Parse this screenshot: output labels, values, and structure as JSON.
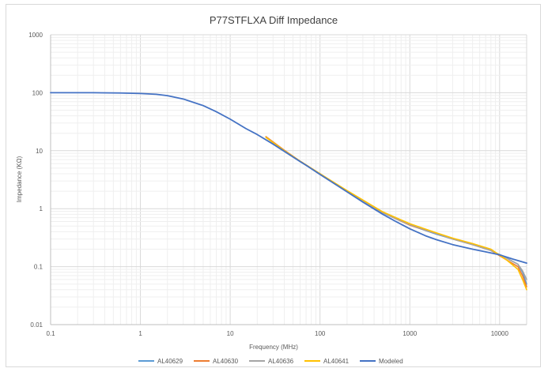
{
  "chart_data": {
    "type": "line",
    "title": "P77STFLXA Diff Impedance",
    "xlabel": "Frequency (MHz)",
    "ylabel": "Impedance (KΩ)",
    "x_scale": "log",
    "y_scale": "log",
    "xlim": [
      0.1,
      20000
    ],
    "ylim": [
      0.01,
      1000
    ],
    "x_ticks": [
      {
        "value": 0.1,
        "label": "0.1"
      },
      {
        "value": 1,
        "label": "1"
      },
      {
        "value": 10,
        "label": "10"
      },
      {
        "value": 100,
        "label": "100"
      },
      {
        "value": 1000,
        "label": "1000"
      },
      {
        "value": 10000,
        "label": "10000"
      }
    ],
    "y_ticks": [
      {
        "value": 0.01,
        "label": "0.01"
      },
      {
        "value": 0.1,
        "label": "0.1"
      },
      {
        "value": 1,
        "label": "1"
      },
      {
        "value": 10,
        "label": "10"
      },
      {
        "value": 100,
        "label": "100"
      },
      {
        "value": 1000,
        "label": "1000"
      }
    ],
    "grid": true,
    "legend_position": "bottom",
    "series": [
      {
        "name": "AL40629",
        "color": "#5b9bd5",
        "points": [
          [
            25,
            17
          ],
          [
            40,
            10
          ],
          [
            60,
            6.5
          ],
          [
            100,
            4
          ],
          [
            200,
            2
          ],
          [
            500,
            0.85
          ],
          [
            1000,
            0.52
          ],
          [
            2000,
            0.36
          ],
          [
            3000,
            0.3
          ],
          [
            5000,
            0.24
          ],
          [
            8000,
            0.19
          ],
          [
            12000,
            0.14
          ],
          [
            16000,
            0.11
          ],
          [
            18000,
            0.08
          ],
          [
            20000,
            0.05
          ]
        ]
      },
      {
        "name": "AL40630",
        "color": "#ed7d31",
        "points": [
          [
            25,
            17.5
          ],
          [
            40,
            10.2
          ],
          [
            60,
            6.6
          ],
          [
            100,
            4
          ],
          [
            200,
            2
          ],
          [
            500,
            0.86
          ],
          [
            1000,
            0.52
          ],
          [
            2000,
            0.37
          ],
          [
            3000,
            0.3
          ],
          [
            5000,
            0.24
          ],
          [
            8000,
            0.19
          ],
          [
            12000,
            0.13
          ],
          [
            16000,
            0.1
          ],
          [
            18000,
            0.07
          ],
          [
            20000,
            0.045
          ]
        ]
      },
      {
        "name": "AL40636",
        "color": "#a5a5a5",
        "points": [
          [
            25,
            17
          ],
          [
            40,
            10
          ],
          [
            60,
            6.5
          ],
          [
            100,
            4
          ],
          [
            200,
            2
          ],
          [
            500,
            0.86
          ],
          [
            1000,
            0.53
          ],
          [
            2000,
            0.37
          ],
          [
            3000,
            0.3
          ],
          [
            5000,
            0.24
          ],
          [
            8000,
            0.19
          ],
          [
            12000,
            0.14
          ],
          [
            16000,
            0.11
          ],
          [
            18000,
            0.085
          ],
          [
            20000,
            0.06
          ]
        ]
      },
      {
        "name": "AL40641",
        "color": "#ffc000",
        "points": [
          [
            25,
            17
          ],
          [
            40,
            10
          ],
          [
            60,
            6.6
          ],
          [
            100,
            4
          ],
          [
            200,
            2.05
          ],
          [
            500,
            0.88
          ],
          [
            1000,
            0.55
          ],
          [
            2000,
            0.38
          ],
          [
            3000,
            0.31
          ],
          [
            5000,
            0.25
          ],
          [
            8000,
            0.2
          ],
          [
            12000,
            0.13
          ],
          [
            16000,
            0.09
          ],
          [
            18000,
            0.06
          ],
          [
            20000,
            0.04
          ]
        ]
      },
      {
        "name": "Modeled",
        "color": "#4472c4",
        "points": [
          [
            0.1,
            100
          ],
          [
            0.3,
            100
          ],
          [
            0.6,
            99
          ],
          [
            1,
            97
          ],
          [
            1.5,
            94
          ],
          [
            2,
            89
          ],
          [
            3,
            78
          ],
          [
            5,
            60
          ],
          [
            7,
            47
          ],
          [
            10,
            35
          ],
          [
            15,
            24
          ],
          [
            20,
            19
          ],
          [
            30,
            13
          ],
          [
            50,
            7.8
          ],
          [
            70,
            5.6
          ],
          [
            100,
            3.9
          ],
          [
            150,
            2.6
          ],
          [
            200,
            1.95
          ],
          [
            300,
            1.3
          ],
          [
            500,
            0.8
          ],
          [
            700,
            0.6
          ],
          [
            1000,
            0.45
          ],
          [
            1500,
            0.34
          ],
          [
            2000,
            0.29
          ],
          [
            3000,
            0.24
          ],
          [
            5000,
            0.2
          ],
          [
            7000,
            0.18
          ],
          [
            10000,
            0.16
          ],
          [
            14000,
            0.135
          ],
          [
            20000,
            0.115
          ]
        ]
      }
    ]
  }
}
